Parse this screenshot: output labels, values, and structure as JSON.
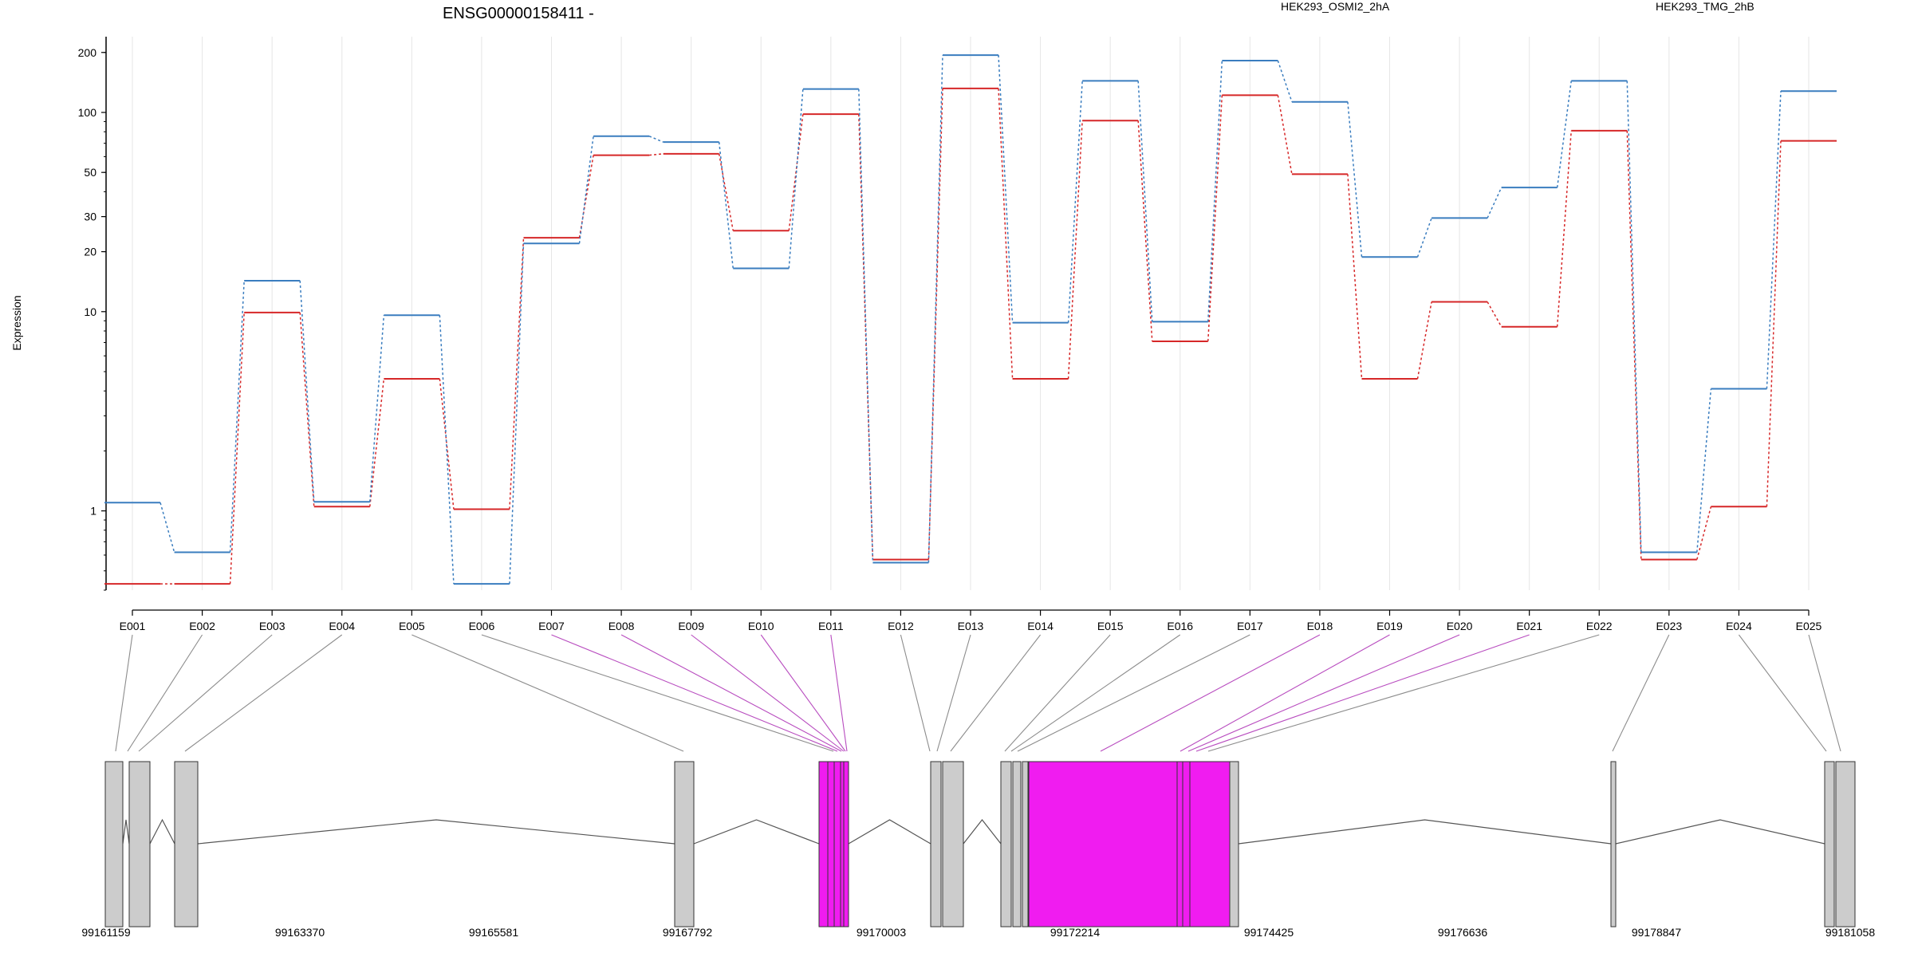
{
  "chart_data": {
    "type": "line",
    "title": "ENSG00000158411 -",
    "ylabel": "Expression",
    "yscale": "log",
    "ylim": [
      0.4,
      240
    ],
    "yticks": [
      1,
      10,
      20,
      30,
      50,
      100,
      200
    ],
    "legend_placement": "top",
    "colors": {
      "HEK293_OSMI2_2hA": "#d62728",
      "HEK293_TMG_2hB": "#3a7dbf",
      "highlight": "#f01cf0",
      "exon": "#cccccc"
    },
    "categories": [
      "E001",
      "E002",
      "E003",
      "E004",
      "E005",
      "E006",
      "E007",
      "E008",
      "E009",
      "E010",
      "E011",
      "E012",
      "E013",
      "E014",
      "E015",
      "E016",
      "E017",
      "E018",
      "E019",
      "E020",
      "E021",
      "E022",
      "E023",
      "E024",
      "E025"
    ],
    "series": [
      {
        "name": "HEK293_OSMI2_2hA",
        "values": [
          0.43,
          0.43,
          9.9,
          1.05,
          4.6,
          1.02,
          23.5,
          61,
          62,
          25.5,
          98,
          0.57,
          132,
          4.6,
          91,
          7.1,
          122,
          49,
          4.6,
          11.2,
          8.4,
          81,
          0.57,
          1.05,
          72
        ]
      },
      {
        "name": "HEK293_TMG_2hB",
        "values": [
          1.1,
          0.62,
          14.3,
          1.11,
          9.6,
          0.43,
          22,
          76,
          71,
          16.5,
          131,
          0.55,
          194,
          8.8,
          144,
          8.9,
          182,
          113,
          18.8,
          29.5,
          42,
          144,
          0.62,
          4.1,
          128
        ]
      }
    ],
    "gene_model": {
      "coordinates": [
        "99161159",
        "99163370",
        "99165581",
        "99167792",
        "99170003",
        "99172214",
        "99174425",
        "99176636",
        "99178847",
        "99181058"
      ],
      "highlighted_exons": [
        "E007",
        "E008",
        "E009",
        "E010",
        "E011",
        "E018",
        "E019",
        "E020",
        "E021"
      ]
    }
  }
}
